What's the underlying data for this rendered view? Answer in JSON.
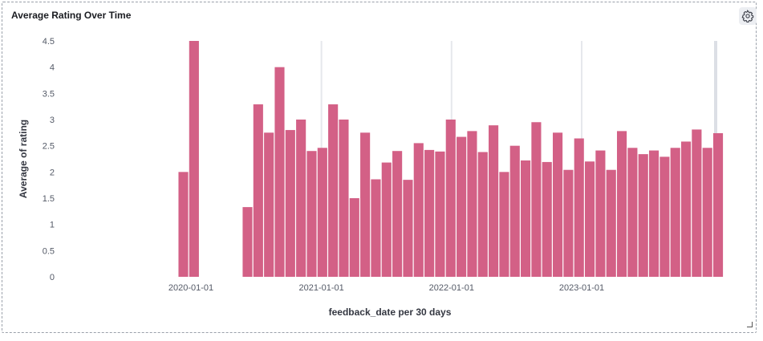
{
  "panel": {
    "title": "Average Rating Over Time"
  },
  "chart_data": {
    "type": "bar",
    "title": "Average Rating Over Time",
    "xlabel": "feedback_date per 30 days",
    "ylabel": "Average of rating",
    "ylim": [
      0,
      4.5
    ],
    "y_ticks": [
      0,
      0.5,
      1,
      1.5,
      2,
      2.5,
      3,
      3.5,
      4,
      4.5
    ],
    "y_tick_labels": [
      "0",
      "0.5",
      "1",
      "1.5",
      "2",
      "2.5",
      "3",
      "3.5",
      "4",
      "4.5"
    ],
    "x_ticks": [
      "2020-01-01",
      "2021-01-01",
      "2022-01-01",
      "2023-01-01"
    ],
    "bar_color": "#d36086",
    "grid": true,
    "interval_days": 30,
    "x": [
      "2019-11-27",
      "2019-12-27",
      "2020-05-25",
      "2020-06-24",
      "2020-07-24",
      "2020-08-23",
      "2020-09-22",
      "2020-10-22",
      "2020-11-21",
      "2020-12-21",
      "2021-01-20",
      "2021-02-19",
      "2021-03-21",
      "2021-04-20",
      "2021-05-20",
      "2021-06-19",
      "2021-07-19",
      "2021-08-18",
      "2021-09-17",
      "2021-10-17",
      "2021-11-16",
      "2021-12-16",
      "2022-01-15",
      "2022-02-14",
      "2022-03-16",
      "2022-04-15",
      "2022-05-15",
      "2022-06-14",
      "2022-07-14",
      "2022-08-13",
      "2022-09-12",
      "2022-10-12",
      "2022-11-11",
      "2022-12-11",
      "2023-01-10",
      "2023-02-09",
      "2023-03-11",
      "2023-04-10",
      "2023-05-10",
      "2023-06-09",
      "2023-07-09",
      "2023-08-08",
      "2023-09-07",
      "2023-10-07",
      "2023-11-06",
      "2023-12-06",
      "2024-01-05"
    ],
    "values": [
      2.0,
      4.5,
      1.33,
      3.29,
      2.75,
      4.0,
      2.8,
      3.0,
      2.4,
      2.46,
      3.29,
      3.0,
      1.5,
      2.75,
      1.86,
      2.18,
      2.4,
      1.85,
      2.55,
      2.42,
      2.39,
      3.0,
      2.67,
      2.78,
      2.38,
      2.89,
      2.0,
      2.5,
      2.22,
      2.95,
      2.19,
      2.75,
      2.04,
      2.64,
      2.2,
      2.41,
      2.04,
      2.78,
      2.46,
      2.34,
      2.41,
      2.29,
      2.46,
      2.58,
      2.81,
      2.46,
      2.74
    ]
  }
}
